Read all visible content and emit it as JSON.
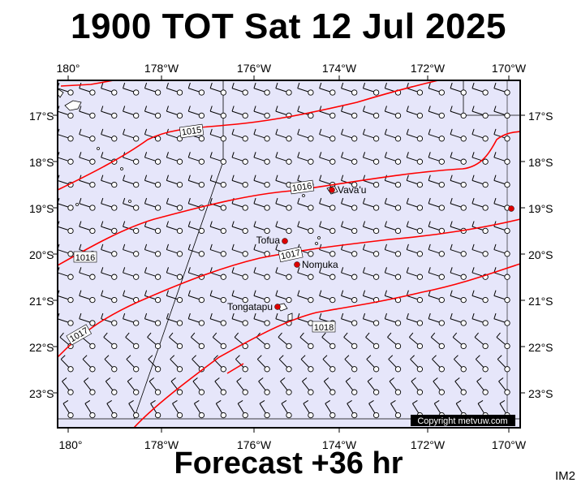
{
  "header": {
    "title": "1900 TOT Sat 12 Jul 2025"
  },
  "footer": {
    "subtitle": "Forecast +36 hr",
    "tag": "IM2",
    "copyright": "Copyright metvuw.com"
  },
  "map": {
    "x_ticks_top": [
      "180°",
      "178°W",
      "176°W",
      "174°W",
      "172°W",
      "170°W"
    ],
    "x_ticks_bottom": [
      "180°",
      "178°W",
      "176°W",
      "174°W",
      "172°W",
      "170°W"
    ],
    "y_ticks": [
      "17°S",
      "18°S",
      "19°S",
      "20°S",
      "21°S",
      "22°S",
      "23°S"
    ],
    "colors": {
      "ocean": "#e6e6fa",
      "isobar": "#ff0000",
      "place_marker": "#dd0000",
      "barb": "#000000"
    },
    "isobar_labels": [
      "1015",
      "1016",
      "1016",
      "1017",
      "1017",
      "1018"
    ],
    "places": [
      "Vava'u",
      "Tofua",
      "Nomuka",
      "Tongatapu"
    ]
  }
}
